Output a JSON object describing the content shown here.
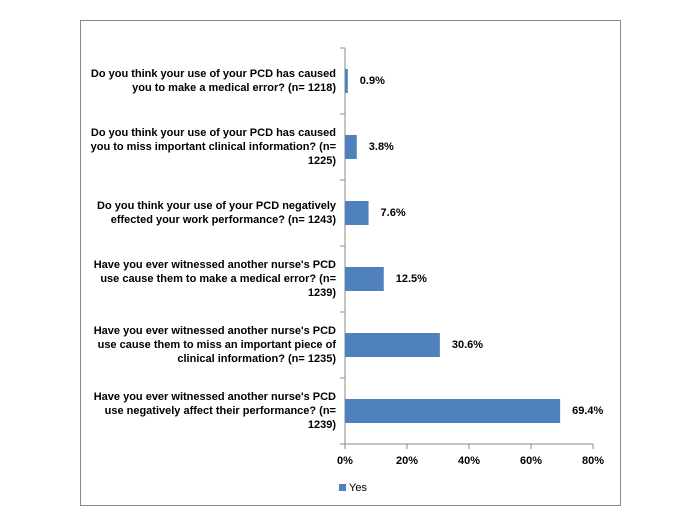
{
  "chart_data": {
    "type": "bar",
    "orientation": "horizontal",
    "categories": [
      "Do you think your use of your PCD has caused you to make a medical error? (n= 1218)",
      "Do you think your use of your PCD has caused you to miss important clinical information? (n= 1225)",
      "Do you think your use of your PCD negatively effected your work performance? (n= 1243)",
      "Have you ever witnessed another nurse's PCD use cause them to make a medical error? (n= 1239)",
      "Have you ever witnessed another nurse's PCD use cause them to miss an important piece of clinical information? (n= 1235)",
      "Have you ever witnessed another nurse's PCD use negatively affect their performance? (n= 1239)"
    ],
    "series": [
      {
        "name": "Yes",
        "color": "#4f81bd",
        "values": [
          0.9,
          3.8,
          7.6,
          12.5,
          30.6,
          69.4
        ],
        "value_labels": [
          "0.9%",
          "3.8%",
          "7.6%",
          "12.5%",
          "30.6%",
          "69.4%"
        ]
      }
    ],
    "xlim": [
      0,
      80
    ],
    "xticks": [
      {
        "value": 0,
        "label": "0%"
      },
      {
        "value": 20,
        "label": "20%"
      },
      {
        "value": 40,
        "label": "40%"
      },
      {
        "value": 60,
        "label": "60%"
      },
      {
        "value": 80,
        "label": "80%"
      }
    ],
    "legend": "bottom"
  }
}
